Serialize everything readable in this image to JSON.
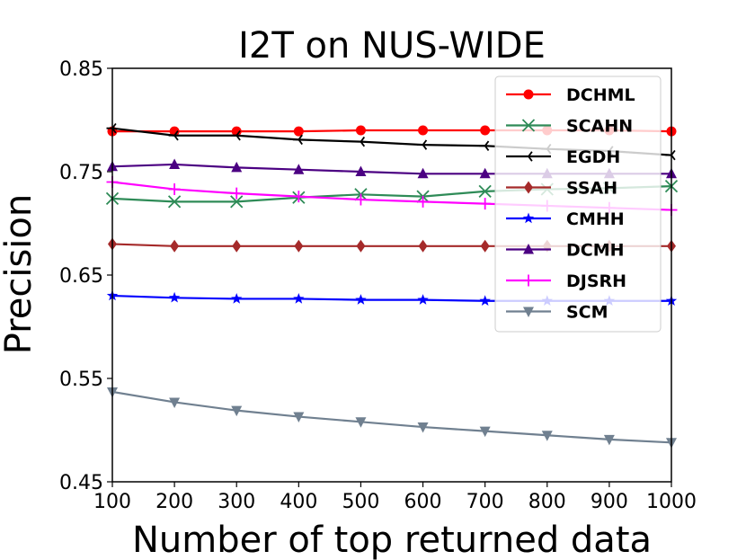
{
  "chart_data": {
    "type": "line",
    "title": "I2T on NUS-WIDE",
    "xlabel": "Number of top returned data",
    "ylabel": "Precision",
    "x": [
      100,
      200,
      300,
      400,
      500,
      600,
      700,
      800,
      900,
      1000
    ],
    "xlim": [
      100,
      1000
    ],
    "ylim": [
      0.45,
      0.85
    ],
    "xticks": [
      "100",
      "200",
      "300",
      "400",
      "500",
      "600",
      "700",
      "800",
      "900",
      "1000"
    ],
    "yticks": [
      "0.45",
      "0.55",
      "0.65",
      "0.75",
      "0.85"
    ],
    "ytick_values": [
      0.45,
      0.55,
      0.65,
      0.75,
      0.85
    ],
    "grid": false,
    "legend_position": "top-right",
    "series": [
      {
        "name": "DCHML",
        "color": "#ff0000",
        "marker": "circle",
        "values": [
          0.789,
          0.789,
          0.789,
          0.789,
          0.79,
          0.79,
          0.79,
          0.79,
          0.79,
          0.789
        ]
      },
      {
        "name": "SCAHN",
        "color": "#2e8b57",
        "marker": "x",
        "values": [
          0.724,
          0.721,
          0.721,
          0.725,
          0.728,
          0.726,
          0.731,
          0.733,
          0.734,
          0.736
        ]
      },
      {
        "name": "EGDH",
        "color": "#000000",
        "marker": "tri_left",
        "values": [
          0.792,
          0.785,
          0.785,
          0.781,
          0.779,
          0.776,
          0.775,
          0.772,
          0.77,
          0.766
        ]
      },
      {
        "name": "SSAH",
        "color": "#a52a2a",
        "marker": "diamond",
        "values": [
          0.68,
          0.678,
          0.678,
          0.678,
          0.678,
          0.678,
          0.678,
          0.678,
          0.678,
          0.678
        ]
      },
      {
        "name": "CMHH",
        "color": "#0000ff",
        "marker": "star",
        "values": [
          0.63,
          0.628,
          0.627,
          0.627,
          0.626,
          0.626,
          0.625,
          0.625,
          0.625,
          0.625
        ]
      },
      {
        "name": "DCMH",
        "color": "#4b0082",
        "marker": "triangle_up",
        "values": [
          0.755,
          0.757,
          0.754,
          0.752,
          0.75,
          0.748,
          0.748,
          0.748,
          0.748,
          0.748
        ]
      },
      {
        "name": "DJSRH",
        "color": "#ff00ff",
        "marker": "plus",
        "values": [
          0.74,
          0.733,
          0.729,
          0.726,
          0.723,
          0.721,
          0.719,
          0.717,
          0.715,
          0.713
        ]
      },
      {
        "name": "SCM",
        "color": "#708090",
        "marker": "triangle_down",
        "values": [
          0.537,
          0.527,
          0.519,
          0.513,
          0.508,
          0.503,
          0.499,
          0.495,
          0.491,
          0.488
        ]
      }
    ]
  }
}
